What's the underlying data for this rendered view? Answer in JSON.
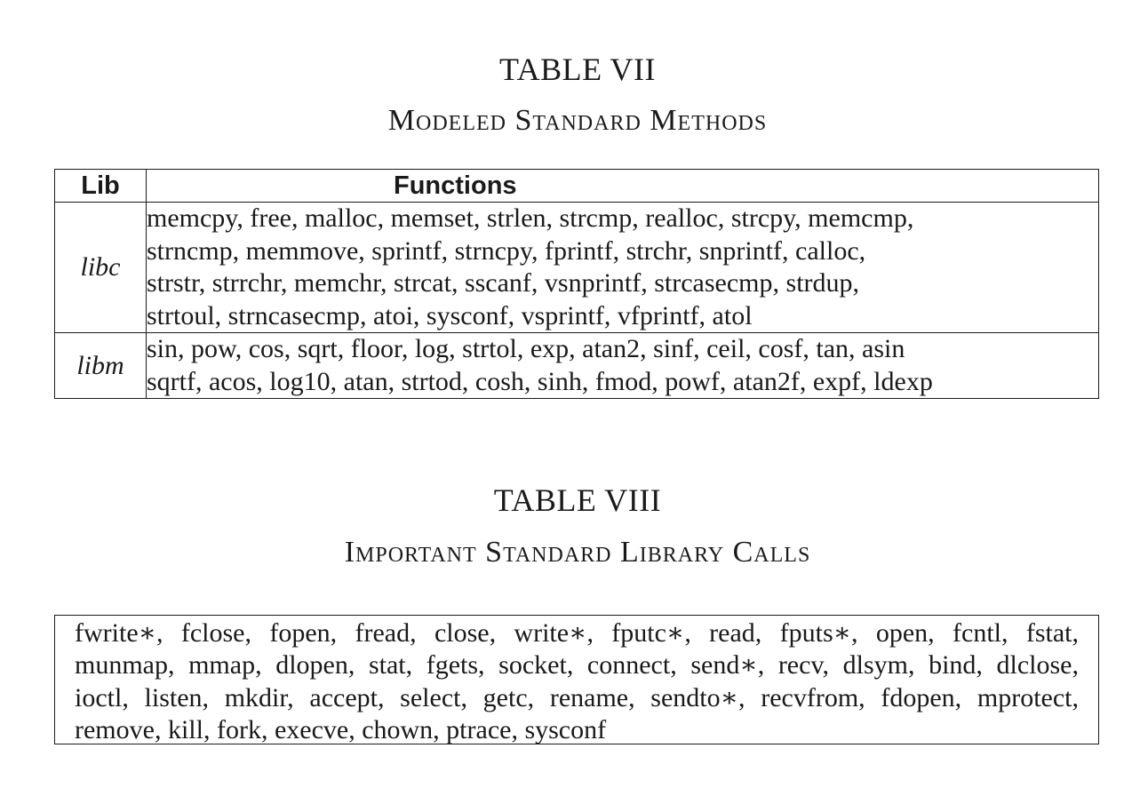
{
  "table7": {
    "label": "TABLE VII",
    "title": "Modeled Standard Methods",
    "headers": {
      "lib": "Lib",
      "functions": "Functions"
    },
    "rows": [
      {
        "lib": "libc",
        "lines": [
          "memcpy, free, malloc, memset, strlen, strcmp, realloc, strcpy, memcmp,",
          "strncmp, memmove, sprintf, strncpy, fprintf, strchr, snprintf, calloc,",
          "strstr, strrchr, memchr, strcat, sscanf, vsnprintf, strcasecmp, strdup,",
          "strtoul, strncasecmp, atoi, sysconf, vsprintf, vfprintf, atol"
        ]
      },
      {
        "lib": "libm",
        "lines": [
          "sin, pow, cos, sqrt, floor, log, strtol, exp, atan2, sinf, ceil, cosf, tan, asin",
          "sqrtf, acos, log10, atan, strtod, cosh, sinh, fmod, powf, atan2f, expf, ldexp"
        ]
      }
    ]
  },
  "table8": {
    "label": "TABLE VIII",
    "title": "Important Standard Library Calls",
    "lines": [
      "fwrite∗, fclose, fopen, fread, close, write∗, fputc∗, read, fputs∗, open, fcntl, fstat,",
      "munmap, mmap, dlopen, stat, fgets, socket, connect, send∗, recv, dlsym, bind, dlclose,",
      "ioctl, listen, mkdir, accept, select, getc, rename, sendto∗, recvfrom, fdopen, mprotect,",
      "remove, kill, fork, execve, chown, ptrace, sysconf"
    ]
  }
}
